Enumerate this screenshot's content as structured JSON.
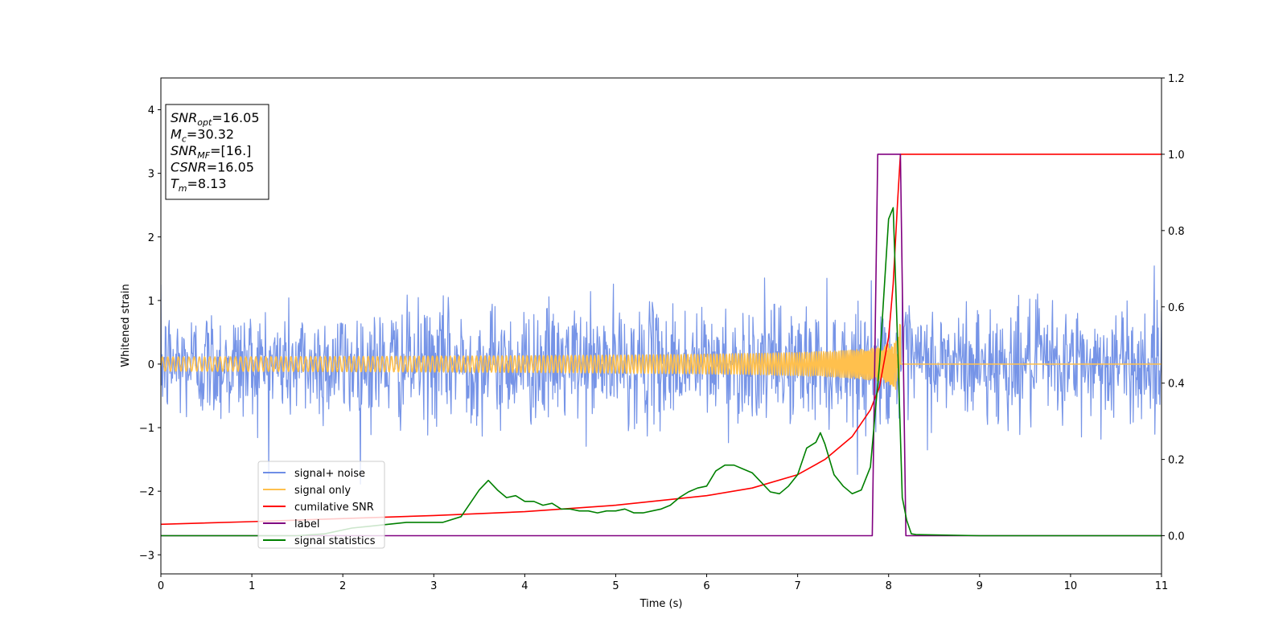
{
  "chart_data": {
    "type": "line",
    "xlabel": "Time (s)",
    "ylabel": "Whitened strain",
    "xlim": [
      0,
      11
    ],
    "ylim_left": [
      -3.3,
      4.5
    ],
    "ylim_right": [
      -0.1,
      1.2
    ],
    "x_ticks": [
      0,
      1,
      2,
      3,
      4,
      5,
      6,
      7,
      8,
      9,
      10,
      11
    ],
    "y_ticks_left": [
      -3,
      -2,
      -1,
      0,
      1,
      2,
      3,
      4
    ],
    "y_ticks_left_labels": [
      "−3",
      "−2",
      "−1",
      "0",
      "1",
      "2",
      "3",
      "4"
    ],
    "y_ticks_right": [
      0.0,
      0.2,
      0.4,
      0.6,
      0.8,
      1.0,
      1.2
    ],
    "y_ticks_right_labels": [
      "0.0",
      "0.2",
      "0.4",
      "0.6",
      "0.8",
      "1.0",
      "1.2"
    ],
    "annotation": {
      "lines": [
        {
          "sym": "SNR",
          "sub": "opt",
          "val": "=16.05"
        },
        {
          "sym": "M",
          "sub": "c",
          "val": "=30.32"
        },
        {
          "sym": "SNR",
          "sub": "MF",
          "val": "=[16.]"
        },
        {
          "sym": "CSNR",
          "sub": "",
          "val": "=16.05"
        },
        {
          "sym": "T",
          "sub": "m",
          "val": "=8.13"
        }
      ]
    },
    "legend_position": "lower-left",
    "series": [
      {
        "name": "signal+ noise",
        "axis": "left",
        "color": "#6f8ee6",
        "style": "noise",
        "description_values": {
          "noise_sigma": 0.45,
          "typical_peak": 1.0,
          "max_peak": 1.75,
          "min_trough": -1.9
        },
        "x_range": [
          0,
          11
        ]
      },
      {
        "name": "signal only",
        "axis": "left",
        "color": "#ffc04d",
        "style": "chirp",
        "merger_time": 8.13,
        "peak_amplitude": 0.75
      },
      {
        "name": "cumilative SNR",
        "axis": "right",
        "color": "#ff0000",
        "x": [
          0,
          1,
          2,
          3,
          4,
          5,
          6,
          6.5,
          7,
          7.3,
          7.6,
          7.8,
          7.9,
          8.0,
          8.05,
          8.1,
          8.13,
          9,
          10,
          11
        ],
        "y": [
          0.03,
          0.037,
          0.045,
          0.053,
          0.063,
          0.08,
          0.105,
          0.125,
          0.16,
          0.2,
          0.26,
          0.33,
          0.39,
          0.52,
          0.66,
          0.88,
          1.0,
          1.0,
          1.0,
          1.0
        ]
      },
      {
        "name": "label",
        "axis": "right",
        "color": "#800080",
        "x": [
          0,
          7.82,
          7.88,
          8.13,
          8.19,
          11
        ],
        "y": [
          0,
          0,
          1,
          1,
          0,
          0
        ]
      },
      {
        "name": "signal statistics",
        "axis": "right",
        "color": "#008000",
        "x": [
          0,
          0.5,
          1,
          1.5,
          1.8,
          2.1,
          2.3,
          2.5,
          2.7,
          2.9,
          3.1,
          3.3,
          3.5,
          3.6,
          3.7,
          3.8,
          3.9,
          4.0,
          4.1,
          4.2,
          4.3,
          4.4,
          4.5,
          4.6,
          4.7,
          4.8,
          4.9,
          5.0,
          5.1,
          5.2,
          5.3,
          5.4,
          5.5,
          5.6,
          5.7,
          5.8,
          5.9,
          6.0,
          6.1,
          6.2,
          6.3,
          6.4,
          6.5,
          6.6,
          6.7,
          6.8,
          6.9,
          7.0,
          7.1,
          7.2,
          7.25,
          7.3,
          7.4,
          7.5,
          7.6,
          7.7,
          7.8,
          7.9,
          8.0,
          8.05,
          8.1,
          8.15,
          8.2,
          8.25,
          8.3,
          9,
          10,
          11
        ],
        "y": [
          0.0,
          0.0,
          0.0,
          0.0,
          0.005,
          0.02,
          0.025,
          0.03,
          0.035,
          0.035,
          0.035,
          0.05,
          0.12,
          0.145,
          0.12,
          0.1,
          0.105,
          0.09,
          0.09,
          0.08,
          0.085,
          0.07,
          0.07,
          0.065,
          0.065,
          0.06,
          0.065,
          0.065,
          0.07,
          0.06,
          0.06,
          0.065,
          0.07,
          0.08,
          0.1,
          0.115,
          0.125,
          0.13,
          0.17,
          0.185,
          0.185,
          0.175,
          0.165,
          0.14,
          0.115,
          0.11,
          0.13,
          0.16,
          0.23,
          0.245,
          0.27,
          0.24,
          0.16,
          0.13,
          0.11,
          0.12,
          0.18,
          0.45,
          0.83,
          0.86,
          0.5,
          0.1,
          0.04,
          0.005,
          0.003,
          0.0,
          0.0,
          0.0
        ]
      }
    ]
  }
}
